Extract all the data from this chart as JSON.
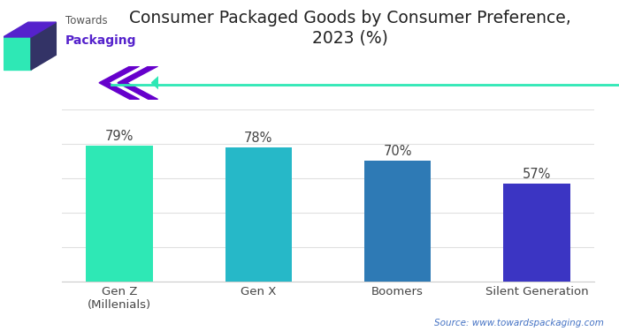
{
  "categories": [
    "Gen Z\n(Millenials)",
    "Gen X",
    "Boomers",
    "Silent Generation"
  ],
  "values": [
    79,
    78,
    70,
    57
  ],
  "bar_colors": [
    "#2ee8b5",
    "#26b8c8",
    "#2e7ab5",
    "#3b35c3"
  ],
  "value_labels": [
    "79%",
    "78%",
    "70%",
    "57%"
  ],
  "title": "Consumer Packaged Goods by Consumer Preference,\n2023 (%)",
  "title_fontsize": 13.5,
  "label_fontsize": 10.5,
  "tick_fontsize": 9.5,
  "ylim": [
    0,
    100
  ],
  "yticks": [
    0,
    20,
    40,
    60,
    80,
    100
  ],
  "background_color": "#ffffff",
  "grid_color": "#e0e0e0",
  "source_text": "Source: www.towardspackaging.com",
  "source_fontsize": 7.5,
  "source_color": "#4472c4",
  "bar_label_color": "#444444",
  "accent_line_color": "#2ee8b5",
  "chevron_color": "#6600cc",
  "chevron_teal": "#2ee8b5",
  "logo_teal": "#2ee8b5",
  "logo_purple": "#5522cc",
  "logo_dark": "#333366"
}
